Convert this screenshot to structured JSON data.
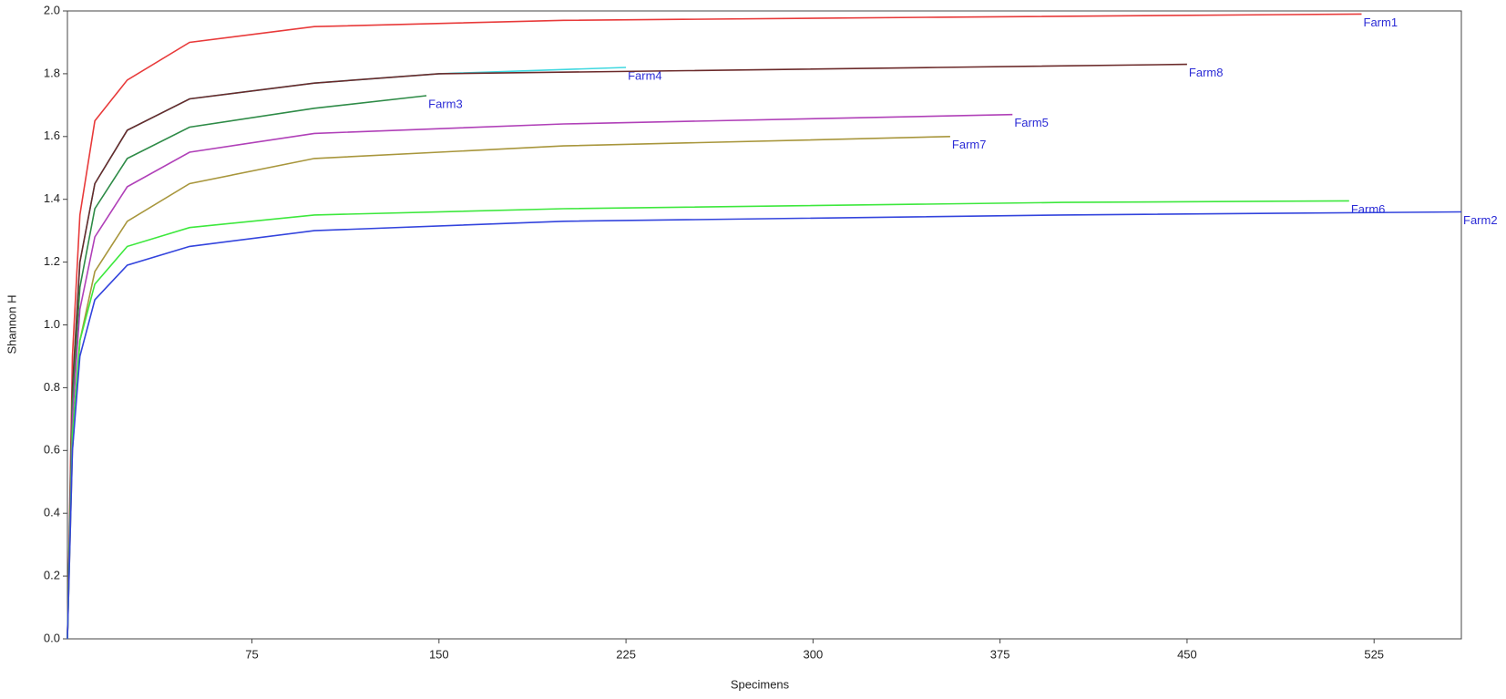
{
  "chart_data": {
    "type": "line",
    "xlabel": "Specimens",
    "ylabel": "Shannon H",
    "xlim": [
      1,
      560
    ],
    "ylim": [
      0,
      2
    ],
    "xticks": [
      75,
      150,
      225,
      300,
      375,
      450,
      525
    ],
    "yticks": [
      {
        "value": 0,
        "label": "0.0"
      },
      0.2,
      0.4,
      0.6,
      0.8,
      {
        "value": 1,
        "label": "1.0"
      },
      1.2,
      1.4,
      1.6,
      1.8,
      {
        "value": 2,
        "label": "2.0"
      }
    ],
    "label_color": "#2b2bd6",
    "series": [
      {
        "name": "Farm1",
        "color": "#e83a3a",
        "x": [
          1,
          3,
          6,
          12,
          25,
          50,
          100,
          200,
          350,
          520
        ],
        "values": [
          0,
          0.9,
          1.35,
          1.65,
          1.78,
          1.9,
          1.95,
          1.97,
          1.98,
          1.99
        ]
      },
      {
        "name": "Farm4",
        "color": "#3fd8e0",
        "x": [
          1,
          3,
          6,
          12,
          25,
          50,
          100,
          150,
          225
        ],
        "values": [
          0,
          0.8,
          1.2,
          1.45,
          1.62,
          1.72,
          1.77,
          1.8,
          1.82
        ]
      },
      {
        "name": "Farm8",
        "color": "#6b2a2a",
        "x": [
          1,
          3,
          6,
          12,
          25,
          50,
          100,
          150,
          250,
          350,
          450
        ],
        "values": [
          0,
          0.8,
          1.2,
          1.45,
          1.62,
          1.72,
          1.77,
          1.8,
          1.81,
          1.82,
          1.83
        ]
      },
      {
        "name": "Farm3",
        "color": "#2e8b47",
        "x": [
          1,
          3,
          6,
          12,
          25,
          50,
          100,
          145
        ],
        "values": [
          0,
          0.75,
          1.12,
          1.37,
          1.53,
          1.63,
          1.69,
          1.73
        ]
      },
      {
        "name": "Farm5",
        "color": "#b040b8",
        "x": [
          1,
          3,
          6,
          12,
          25,
          50,
          100,
          200,
          380
        ],
        "values": [
          0,
          0.7,
          1.05,
          1.28,
          1.44,
          1.55,
          1.61,
          1.64,
          1.67
        ]
      },
      {
        "name": "Farm7",
        "color": "#a8963c",
        "x": [
          1,
          3,
          6,
          12,
          25,
          50,
          100,
          200,
          355
        ],
        "values": [
          0,
          0.6,
          0.95,
          1.17,
          1.33,
          1.45,
          1.53,
          1.57,
          1.6
        ]
      },
      {
        "name": "Farm6",
        "color": "#3de83d",
        "x": [
          1,
          3,
          6,
          12,
          25,
          50,
          100,
          200,
          400,
          515
        ],
        "values": [
          0,
          0.65,
          0.95,
          1.13,
          1.25,
          1.31,
          1.35,
          1.37,
          1.39,
          1.395
        ]
      },
      {
        "name": "Farm2",
        "color": "#3344dd",
        "x": [
          1,
          3,
          6,
          12,
          25,
          50,
          100,
          200,
          400,
          560
        ],
        "values": [
          0,
          0.6,
          0.9,
          1.08,
          1.19,
          1.25,
          1.3,
          1.33,
          1.35,
          1.36
        ]
      }
    ]
  }
}
